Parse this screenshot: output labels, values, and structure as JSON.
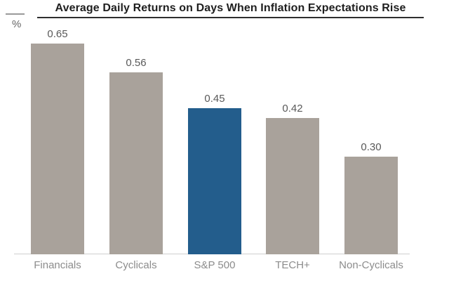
{
  "header": {
    "title": "Average Daily Returns on Days When Inflation Expectations Rise",
    "unit_label": "%"
  },
  "chart_data": {
    "type": "bar",
    "title": "Average Daily Returns on Days When Inflation Expectations Rise",
    "xlabel": "",
    "ylabel": "%",
    "ylim": [
      0,
      0.72
    ],
    "grid": false,
    "legend": false,
    "categories": [
      "Financials",
      "Cyclicals",
      "S&P 500",
      "TECH+",
      "Non-Cyclicals"
    ],
    "values": [
      0.65,
      0.56,
      0.45,
      0.42,
      0.3
    ],
    "value_labels": [
      "0.65",
      "0.56",
      "0.45",
      "0.42",
      "0.30"
    ],
    "highlight_category": "S&P 500",
    "bar_highlight": [
      false,
      false,
      true,
      false,
      false
    ],
    "colors": {
      "bar_default": "#a9a29b",
      "bar_highlight": "#235d8c",
      "title_text": "#1f1f1f",
      "value_text": "#595959",
      "category_text": "#8c8c8c",
      "baseline": "#cfcfcf"
    }
  }
}
